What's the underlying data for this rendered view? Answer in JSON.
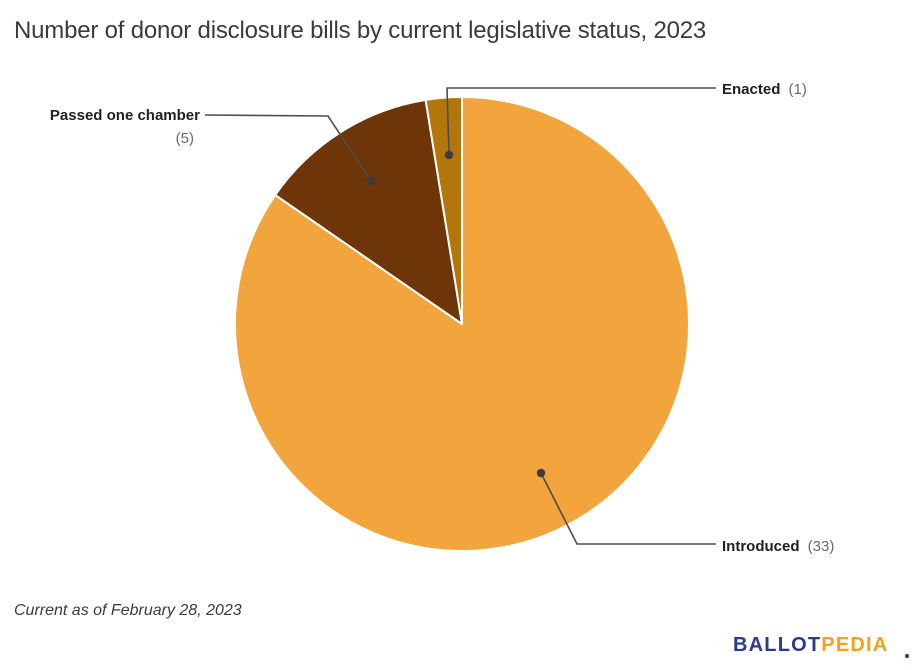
{
  "title": "Number of donor disclosure bills by current legislative status, 2023",
  "footnote": "Current as of February 28, 2023",
  "logo": {
    "part1": "BALLOT",
    "part2": "PEDIA",
    "part1_color": "#2B3990",
    "part2_color": "#F7A01B"
  },
  "colors": {
    "background": "#ffffff",
    "title_text": "#3b3b3b",
    "label_text": "#202122",
    "count_text": "#696969",
    "leader_line": "#4d4d4d",
    "callout_dot": "#3d3d3d",
    "slice_border": "#ffffff"
  },
  "chart_data": {
    "type": "pie",
    "title": "Number of donor disclosure bills by current legislative status, 2023",
    "total": 39,
    "start_angle_deg": 0,
    "direction": "clockwise",
    "legend_position": "callout-labels",
    "segments": [
      {
        "label": "Introduced",
        "value": 33,
        "count_display": "(33)",
        "color": "#F2A43D"
      },
      {
        "label": "Passed one chamber",
        "value": 5,
        "count_display": "(5)",
        "color": "#6E3509"
      },
      {
        "label": "Enacted",
        "value": 1,
        "count_display": "(1)",
        "color": "#B3760B"
      }
    ]
  }
}
